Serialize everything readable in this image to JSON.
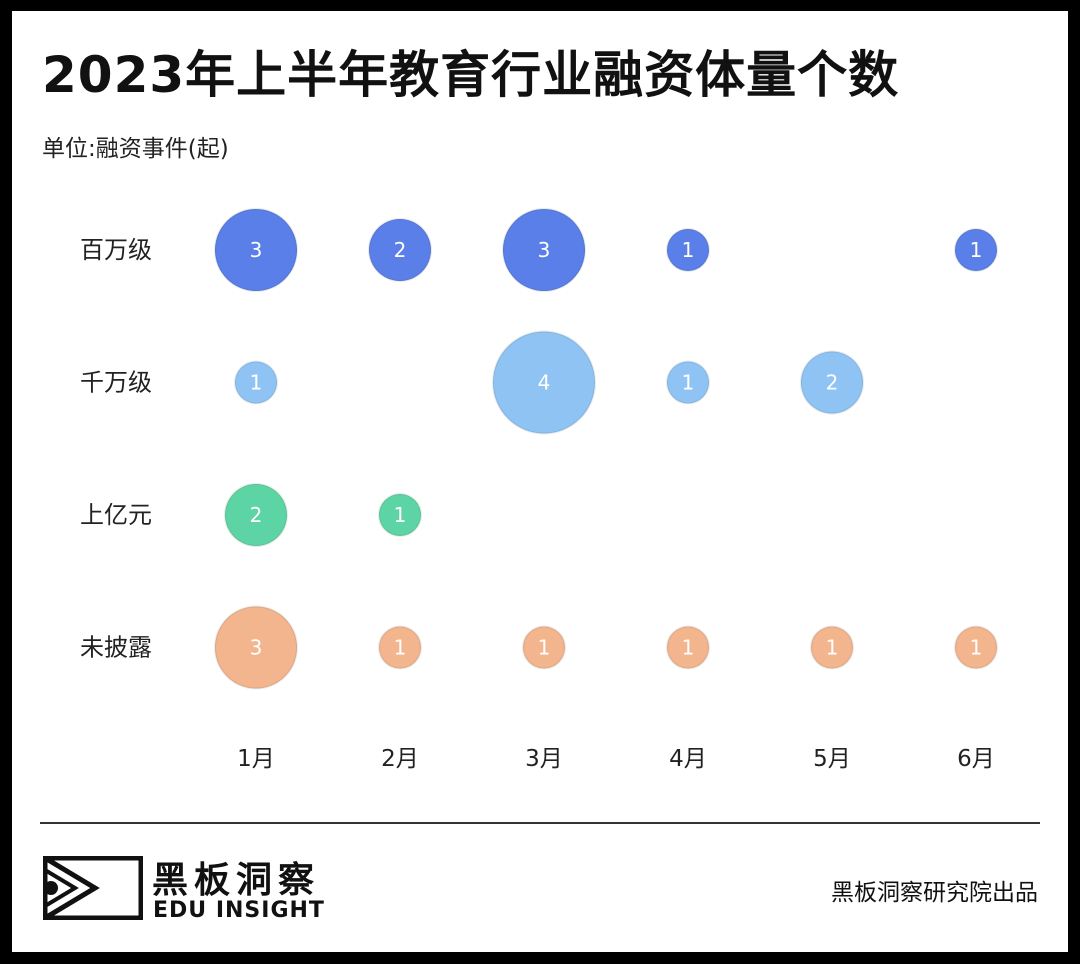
{
  "title": "2023年上半年教育行业融资体量个数",
  "unit_label": "单位:融资事件(起)",
  "chart_data": {
    "type": "bubble",
    "title": "2023年上半年教育行业融资体量个数",
    "ylabel": "单位:融资事件(起)",
    "categories": [
      "1月",
      "2月",
      "3月",
      "4月",
      "5月",
      "6月"
    ],
    "series": [
      {
        "name": "百万级",
        "color": "#5b7fe8",
        "values": [
          3,
          2,
          3,
          1,
          null,
          1
        ]
      },
      {
        "name": "千万级",
        "color": "#8fc3f4",
        "values": [
          1,
          null,
          4,
          1,
          2,
          null
        ]
      },
      {
        "name": "上亿元",
        "color": "#5dd4a3",
        "values": [
          2,
          1,
          null,
          null,
          null,
          null
        ]
      },
      {
        "name": "未披露",
        "color": "#f3b58e",
        "values": [
          3,
          1,
          1,
          1,
          1,
          1
        ]
      }
    ],
    "grid": false,
    "legend": "none"
  },
  "footer": {
    "brand_cn": "黑板洞察",
    "brand_en": "EDU INSIGHT",
    "credit": "黑板洞察研究院出品"
  }
}
